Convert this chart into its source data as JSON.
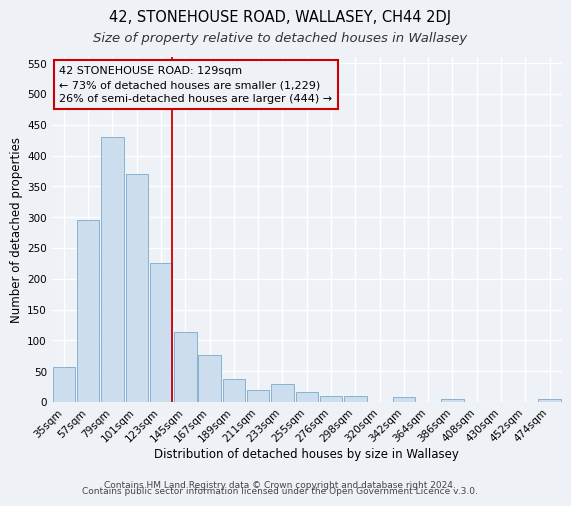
{
  "title": "42, STONEHOUSE ROAD, WALLASEY, CH44 2DJ",
  "subtitle": "Size of property relative to detached houses in Wallasey",
  "xlabel": "Distribution of detached houses by size in Wallasey",
  "ylabel": "Number of detached properties",
  "bar_labels": [
    "35sqm",
    "57sqm",
    "79sqm",
    "101sqm",
    "123sqm",
    "145sqm",
    "167sqm",
    "189sqm",
    "211sqm",
    "233sqm",
    "255sqm",
    "276sqm",
    "298sqm",
    "320sqm",
    "342sqm",
    "364sqm",
    "386sqm",
    "408sqm",
    "430sqm",
    "452sqm",
    "474sqm"
  ],
  "bar_values": [
    57,
    295,
    430,
    370,
    225,
    113,
    76,
    38,
    20,
    29,
    17,
    10,
    10,
    0,
    8,
    0,
    5,
    0,
    0,
    0,
    5
  ],
  "bar_color": "#ccdded",
  "bar_edge_color": "#7aaacc",
  "ylim": [
    0,
    560
  ],
  "yticks": [
    0,
    50,
    100,
    150,
    200,
    250,
    300,
    350,
    400,
    450,
    500,
    550
  ],
  "vline_x_index": 4,
  "vline_color": "#cc0000",
  "annotation_line1": "42 STONEHOUSE ROAD: 129sqm",
  "annotation_line2": "← 73% of detached houses are smaller (1,229)",
  "annotation_line3": "26% of semi-detached houses are larger (444) →",
  "annotation_box_color": "#cc0000",
  "footer_line1": "Contains HM Land Registry data © Crown copyright and database right 2024.",
  "footer_line2": "Contains public sector information licensed under the Open Government Licence v.3.0.",
  "bg_color": "#eef2f7",
  "grid_color": "#ffffff",
  "title_fontsize": 10.5,
  "subtitle_fontsize": 9.5,
  "axis_label_fontsize": 8.5,
  "tick_fontsize": 7.5,
  "annotation_fontsize": 8,
  "footer_fontsize": 6.5
}
